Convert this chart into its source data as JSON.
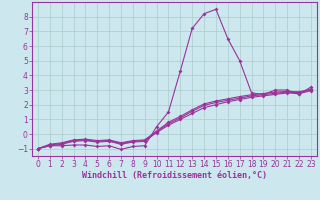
{
  "xlabel": "Windchill (Refroidissement éolien,°C)",
  "background_color": "#cce8ee",
  "grid_color": "#aacccc",
  "line_color": "#993399",
  "x_values": [
    0,
    1,
    2,
    3,
    4,
    5,
    6,
    7,
    8,
    9,
    10,
    11,
    12,
    13,
    14,
    15,
    16,
    17,
    18,
    19,
    20,
    21,
    22,
    23
  ],
  "series1": [
    -1.0,
    -0.8,
    -0.8,
    -0.75,
    -0.75,
    -0.85,
    -0.8,
    -1.05,
    -0.85,
    -0.8,
    0.5,
    1.5,
    4.3,
    7.2,
    8.2,
    8.5,
    6.5,
    5.0,
    2.8,
    2.7,
    3.0,
    3.0,
    2.7,
    3.2
  ],
  "series2": [
    -1.0,
    -0.8,
    -0.7,
    -0.5,
    -0.45,
    -0.55,
    -0.5,
    -0.7,
    -0.55,
    -0.5,
    0.1,
    0.6,
    1.0,
    1.4,
    1.8,
    2.0,
    2.2,
    2.35,
    2.5,
    2.6,
    2.7,
    2.8,
    2.75,
    2.95
  ],
  "series3": [
    -1.0,
    -0.75,
    -0.65,
    -0.45,
    -0.4,
    -0.5,
    -0.45,
    -0.65,
    -0.5,
    -0.45,
    0.15,
    0.7,
    1.1,
    1.55,
    1.95,
    2.15,
    2.3,
    2.45,
    2.6,
    2.68,
    2.78,
    2.85,
    2.82,
    3.0
  ],
  "series4": [
    -1.0,
    -0.7,
    -0.6,
    -0.4,
    -0.35,
    -0.45,
    -0.4,
    -0.6,
    -0.45,
    -0.4,
    0.2,
    0.8,
    1.2,
    1.65,
    2.05,
    2.25,
    2.4,
    2.55,
    2.68,
    2.76,
    2.86,
    2.9,
    2.88,
    3.05
  ],
  "ylim": [
    -1.5,
    9.0
  ],
  "xlim": [
    -0.5,
    23.5
  ],
  "yticks": [
    -1,
    0,
    1,
    2,
    3,
    4,
    5,
    6,
    7,
    8
  ],
  "xticks": [
    0,
    1,
    2,
    3,
    4,
    5,
    6,
    7,
    8,
    9,
    10,
    11,
    12,
    13,
    14,
    15,
    16,
    17,
    18,
    19,
    20,
    21,
    22,
    23
  ],
  "tick_fontsize": 5.5,
  "xlabel_fontsize": 6.0
}
